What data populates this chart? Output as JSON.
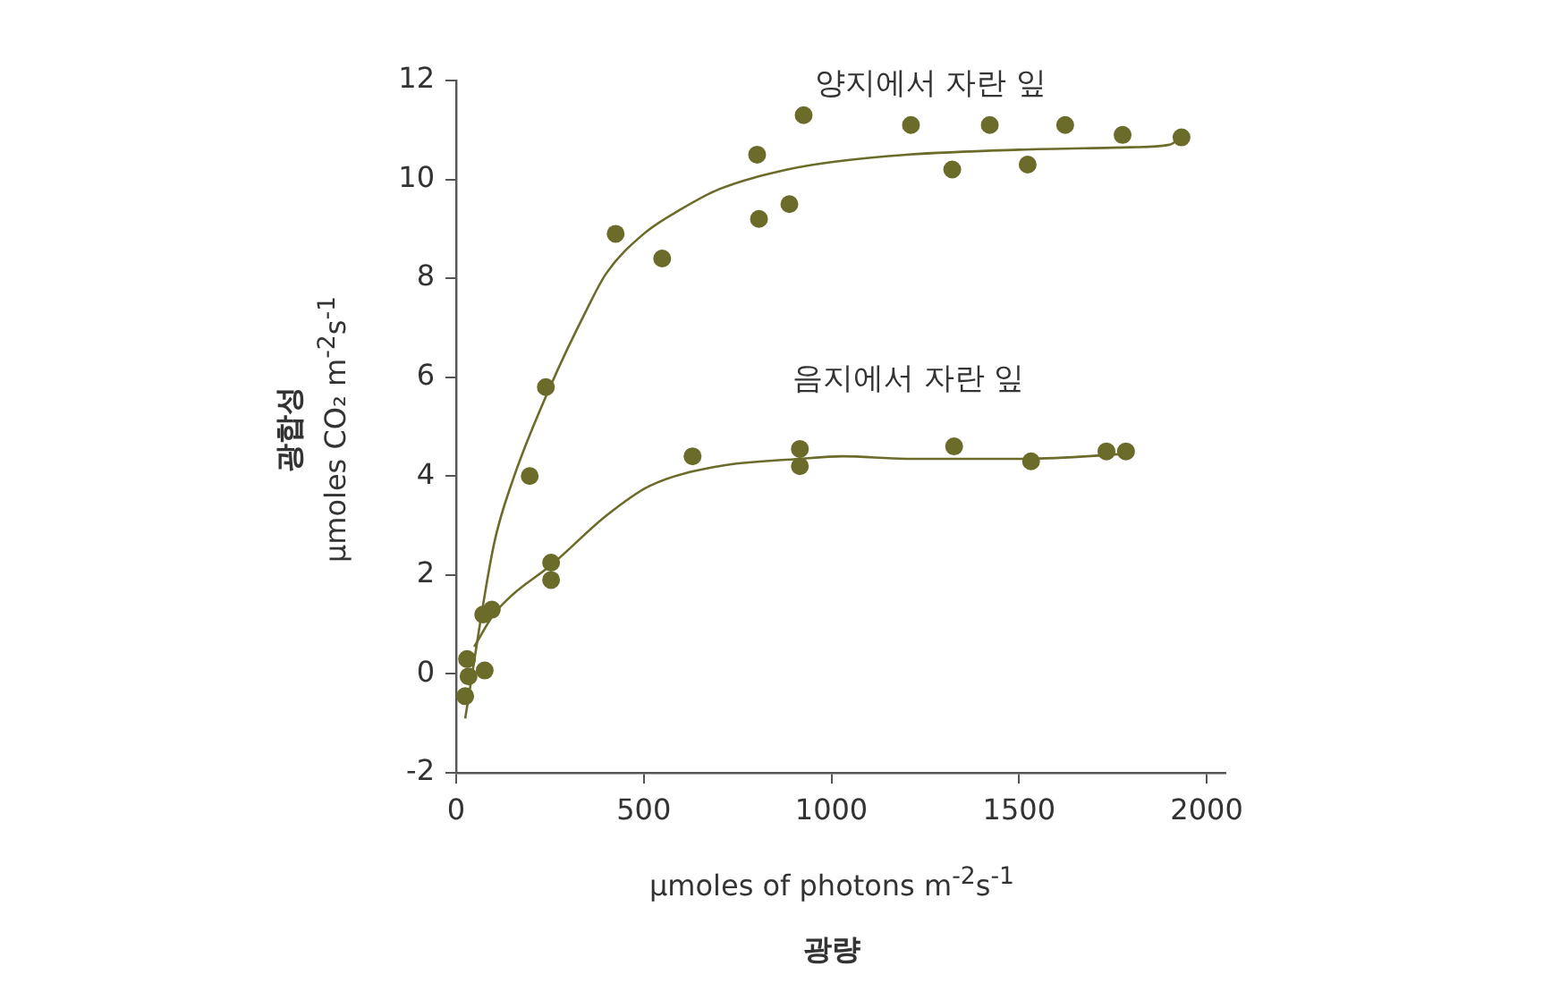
{
  "chart_data": {
    "type": "scatter",
    "xlabel": "μmoles of photons m$^{-2}$s$^{-1}$\n광량",
    "ylabel": "광합성\nμmoles CO₂ m$^{-2}$s$^{-1}$",
    "xlim": [
      0,
      2050
    ],
    "ylim": [
      -2,
      12
    ],
    "xticks": [
      0,
      500,
      1000,
      1500,
      2000
    ],
    "yticks": [
      -2,
      0,
      2,
      4,
      6,
      8,
      10,
      12
    ],
    "grid": false,
    "legend": false,
    "marker": "circle",
    "series": [
      {
        "type": "scatter",
        "color": "#6b6b2a",
        "x": [
          24,
          72,
          196,
          239,
          425,
          549,
          802,
          807,
          888,
          926,
          1212,
          1322,
          1422,
          1523,
          1623,
          1776,
          1933
        ],
        "values": [
          -0.45,
          1.2,
          4.0,
          5.8,
          8.9,
          8.4,
          10.5,
          9.2,
          9.5,
          11.3,
          11.1,
          10.2,
          11.1,
          10.3,
          11.1,
          10.9,
          10.85
        ]
      },
      {
        "type": "scatter",
        "color": "#6b6b2a",
        "x": [
          29,
          33,
          76,
          95,
          253,
          253,
          630,
          916,
          916,
          1327,
          1532,
          1733,
          1785
        ],
        "values": [
          0.3,
          -0.05,
          0.07,
          1.3,
          2.25,
          1.9,
          4.4,
          4.55,
          4.2,
          4.6,
          4.3,
          4.5,
          4.5
        ]
      },
      {
        "type": "line",
        "name": "양지에서 자란 잎",
        "color": "#6b6b2a",
        "marker": "none",
        "x": [
          24,
          100,
          150,
          250,
          350,
          400,
          500,
          600,
          700,
          883,
          1000,
          1200,
          1500,
          1800,
          1900,
          1933
        ],
        "values": [
          -0.9,
          2.6,
          3.9,
          5.8,
          7.4,
          8.1,
          8.9,
          9.4,
          9.8,
          10.2,
          10.35,
          10.5,
          10.6,
          10.65,
          10.7,
          10.85
        ]
      },
      {
        "type": "line",
        "name": "음지에서 자란 잎",
        "color": "#6b6b2a",
        "marker": "none",
        "x": [
          48,
          100,
          150,
          253,
          400,
          515,
          700,
          916,
          1030,
          1200,
          1520,
          1790
        ],
        "values": [
          0.55,
          1.2,
          1.6,
          2.2,
          3.2,
          3.8,
          4.2,
          4.35,
          4.4,
          4.35,
          4.35,
          4.45
        ]
      }
    ]
  }
}
